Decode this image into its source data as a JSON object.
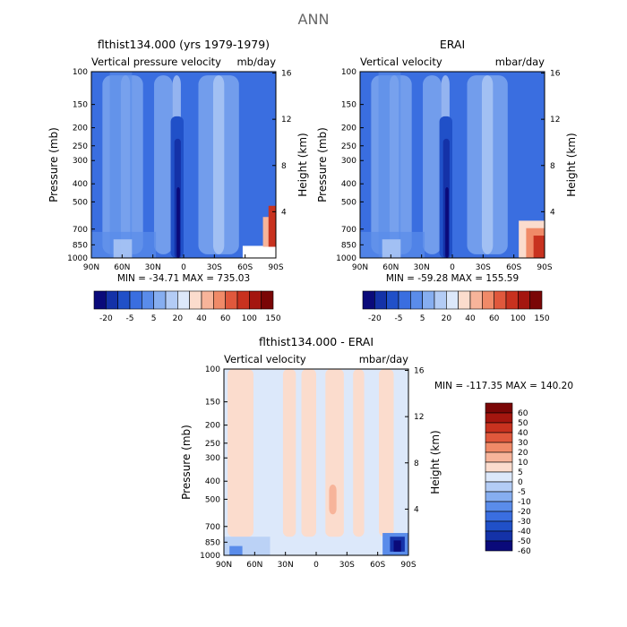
{
  "figure": {
    "title": "ANN"
  },
  "chart_data": [
    {
      "type": "heatmap",
      "title": "flthist134.000 (yrs 1979-1979)",
      "subtitle_left": "Vertical pressure velocity",
      "subtitle_right": "mb/day",
      "xlabel": "",
      "ylabel": "Pressure (mb)",
      "ylabel_right": "Height (km)",
      "x_ticks": [
        "90N",
        "60N",
        "30N",
        "0",
        "30S",
        "60S",
        "90S"
      ],
      "y_ticks": [
        "100",
        "150",
        "200",
        "250",
        "300",
        "400",
        "500",
        "700",
        "850",
        "1000"
      ],
      "y_ticks_right": [
        "16",
        "12",
        "8",
        "4"
      ],
      "ylim": [
        1000,
        100
      ],
      "yscale": "log",
      "stats": "MIN = -34.71   MAX = 735.03",
      "colorbar_labels": [
        "-20",
        "-5",
        "5",
        "20",
        "40",
        "60",
        "100",
        "150"
      ]
    },
    {
      "type": "heatmap",
      "title": "ERAI",
      "subtitle_left": "Vertical velocity",
      "subtitle_right": "mbar/day",
      "xlabel": "",
      "ylabel": "Pressure (mb)",
      "ylabel_right": "Height (km)",
      "x_ticks": [
        "90N",
        "60N",
        "30N",
        "0",
        "30S",
        "60S",
        "90S"
      ],
      "y_ticks": [
        "100",
        "150",
        "200",
        "250",
        "300",
        "400",
        "500",
        "700",
        "850",
        "1000"
      ],
      "y_ticks_right": [
        "16",
        "12",
        "8",
        "4"
      ],
      "ylim": [
        1000,
        100
      ],
      "yscale": "log",
      "stats": "MIN = -59.28   MAX = 155.59",
      "colorbar_labels": [
        "-20",
        "-5",
        "5",
        "20",
        "40",
        "60",
        "100",
        "150"
      ]
    },
    {
      "type": "heatmap",
      "title": "flthist134.000 - ERAI",
      "subtitle_left": "Vertical velocity",
      "subtitle_right": "mbar/day",
      "xlabel": "",
      "ylabel": "Pressure (mb)",
      "ylabel_right": "Height (km)",
      "x_ticks": [
        "90N",
        "60N",
        "30N",
        "0",
        "30S",
        "60S",
        "90S"
      ],
      "y_ticks": [
        "100",
        "150",
        "200",
        "250",
        "300",
        "400",
        "500",
        "700",
        "850",
        "1000"
      ],
      "y_ticks_right": [
        "16",
        "12",
        "8",
        "4"
      ],
      "ylim": [
        1000,
        100
      ],
      "yscale": "log",
      "stats": "MIN = -117.35   MAX = 140.20",
      "colorbar_labels": [
        "60",
        "50",
        "40",
        "30",
        "20",
        "10",
        "5",
        "0",
        "-5",
        "-10",
        "-20",
        "-30",
        "-40",
        "-50",
        "-60"
      ]
    }
  ],
  "colors": {
    "top_scale": [
      "#0a0a7a",
      "#1432a8",
      "#2050c8",
      "#3a6ee0",
      "#5a8cea",
      "#86aef0",
      "#b3ccf5",
      "#dce8fa",
      "#fbdccd",
      "#f7b49a",
      "#f08a68",
      "#e0583c",
      "#c8321f",
      "#a4160f",
      "#7a0606"
    ],
    "diff_scale": [
      "#7a0606",
      "#a4160f",
      "#c8321f",
      "#e0583c",
      "#f08a68",
      "#f7b49a",
      "#fbdccd",
      "#dce8fa",
      "#b3ccf5",
      "#86aef0",
      "#5a8cea",
      "#3a6ee0",
      "#2050c8",
      "#1432a8",
      "#0a0a7a"
    ]
  }
}
